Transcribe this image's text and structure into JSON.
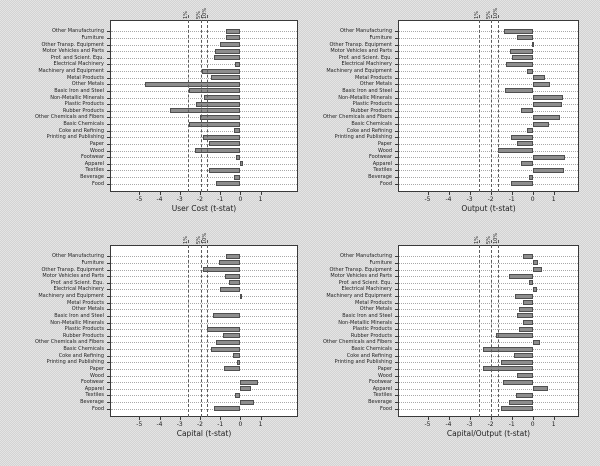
{
  "figure": {
    "background": "#dcdcdc",
    "panel_bg": "#ffffff",
    "bar_fill": "#8d8d8d",
    "bar_stroke": "#4f4f4f",
    "grid_color": "#a8a8a8",
    "axis_color": "#3a3a3a"
  },
  "categories": [
    "Other Manufacturing",
    "Furniture",
    "Other Transp. Equipment",
    "Motor Vehicles and Parts",
    "Prof. and Scient. Equ.",
    "Electrical Machinery",
    "Machinery and Equipment",
    "Metal Products",
    "Other Metals",
    "Basic Iron and Steel",
    "Non-Metallic Minerals",
    "Plastic Products",
    "Rubber Products",
    "Other Chemicals and Fibers",
    "Basic Chemicals",
    "Coke and Refining",
    "Printing and Publishing",
    "Paper",
    "Wood",
    "Footwear",
    "Apparel",
    "Textiles",
    "Beverage",
    "Food"
  ],
  "critical_lines": {
    "values": [
      -2.576,
      -1.96,
      -1.645
    ],
    "labels": [
      "1%",
      "5%",
      "10%"
    ]
  },
  "x_axis": {
    "ticks": [
      -5,
      -4,
      -3,
      -2,
      -1,
      0,
      1
    ]
  },
  "chart_data": [
    {
      "type": "bar",
      "orientation": "horizontal",
      "xlabel": "User Cost (t-stat)",
      "xlim": [
        -6.45,
        2.85
      ],
      "grid": "dotted-horizontal",
      "values": [
        -0.7,
        -0.7,
        -1.0,
        -1.25,
        -1.3,
        -0.25,
        -1.9,
        -1.45,
        -4.7,
        -2.55,
        -1.8,
        -2.2,
        -3.5,
        -2.0,
        -2.55,
        -0.3,
        -1.85,
        -1.55,
        -2.25,
        -0.2,
        0.15,
        -1.55,
        -0.3,
        -1.2
      ]
    },
    {
      "type": "bar",
      "orientation": "horizontal",
      "xlabel": "Output (t-stat)",
      "xlim": [
        -6.4,
        2.2
      ],
      "grid": "dotted-horizontal",
      "values": [
        -1.35,
        -0.74,
        -0.05,
        -1.1,
        -1.0,
        -1.25,
        -0.26,
        0.58,
        0.82,
        -1.3,
        1.45,
        1.38,
        -0.58,
        1.3,
        0.8,
        -0.26,
        -1.05,
        -0.74,
        -1.63,
        1.54,
        -0.55,
        1.5,
        -0.2,
        -1.05
      ]
    },
    {
      "type": "bar",
      "orientation": "horizontal",
      "xlabel": "Capital (t-stat)",
      "xlim": [
        -6.45,
        2.85
      ],
      "grid": "dotted-horizontal",
      "values": [
        -0.71,
        -1.07,
        -1.87,
        -0.75,
        -0.56,
        -1.0,
        0.08,
        0,
        0,
        -1.36,
        0,
        -1.63,
        -0.87,
        -1.23,
        -1.47,
        -0.35,
        -0.16,
        -0.8,
        0,
        0.85,
        0.53,
        -0.27,
        0.69,
        -1.3
      ]
    },
    {
      "type": "bar",
      "orientation": "horizontal",
      "xlabel": "Capital/Output (t-stat)",
      "xlim": [
        -6.4,
        2.2
      ],
      "grid": "dotted-horizontal",
      "values": [
        -0.45,
        0.27,
        0.43,
        -1.15,
        -0.19,
        0.21,
        -0.83,
        -0.48,
        -0.64,
        -0.75,
        -0.48,
        -0.64,
        -1.76,
        0.37,
        -2.36,
        -0.88,
        -1.52,
        -2.36,
        -0.75,
        -1.39,
        0.72,
        -0.8,
        -1.15,
        -1.52
      ]
    }
  ]
}
